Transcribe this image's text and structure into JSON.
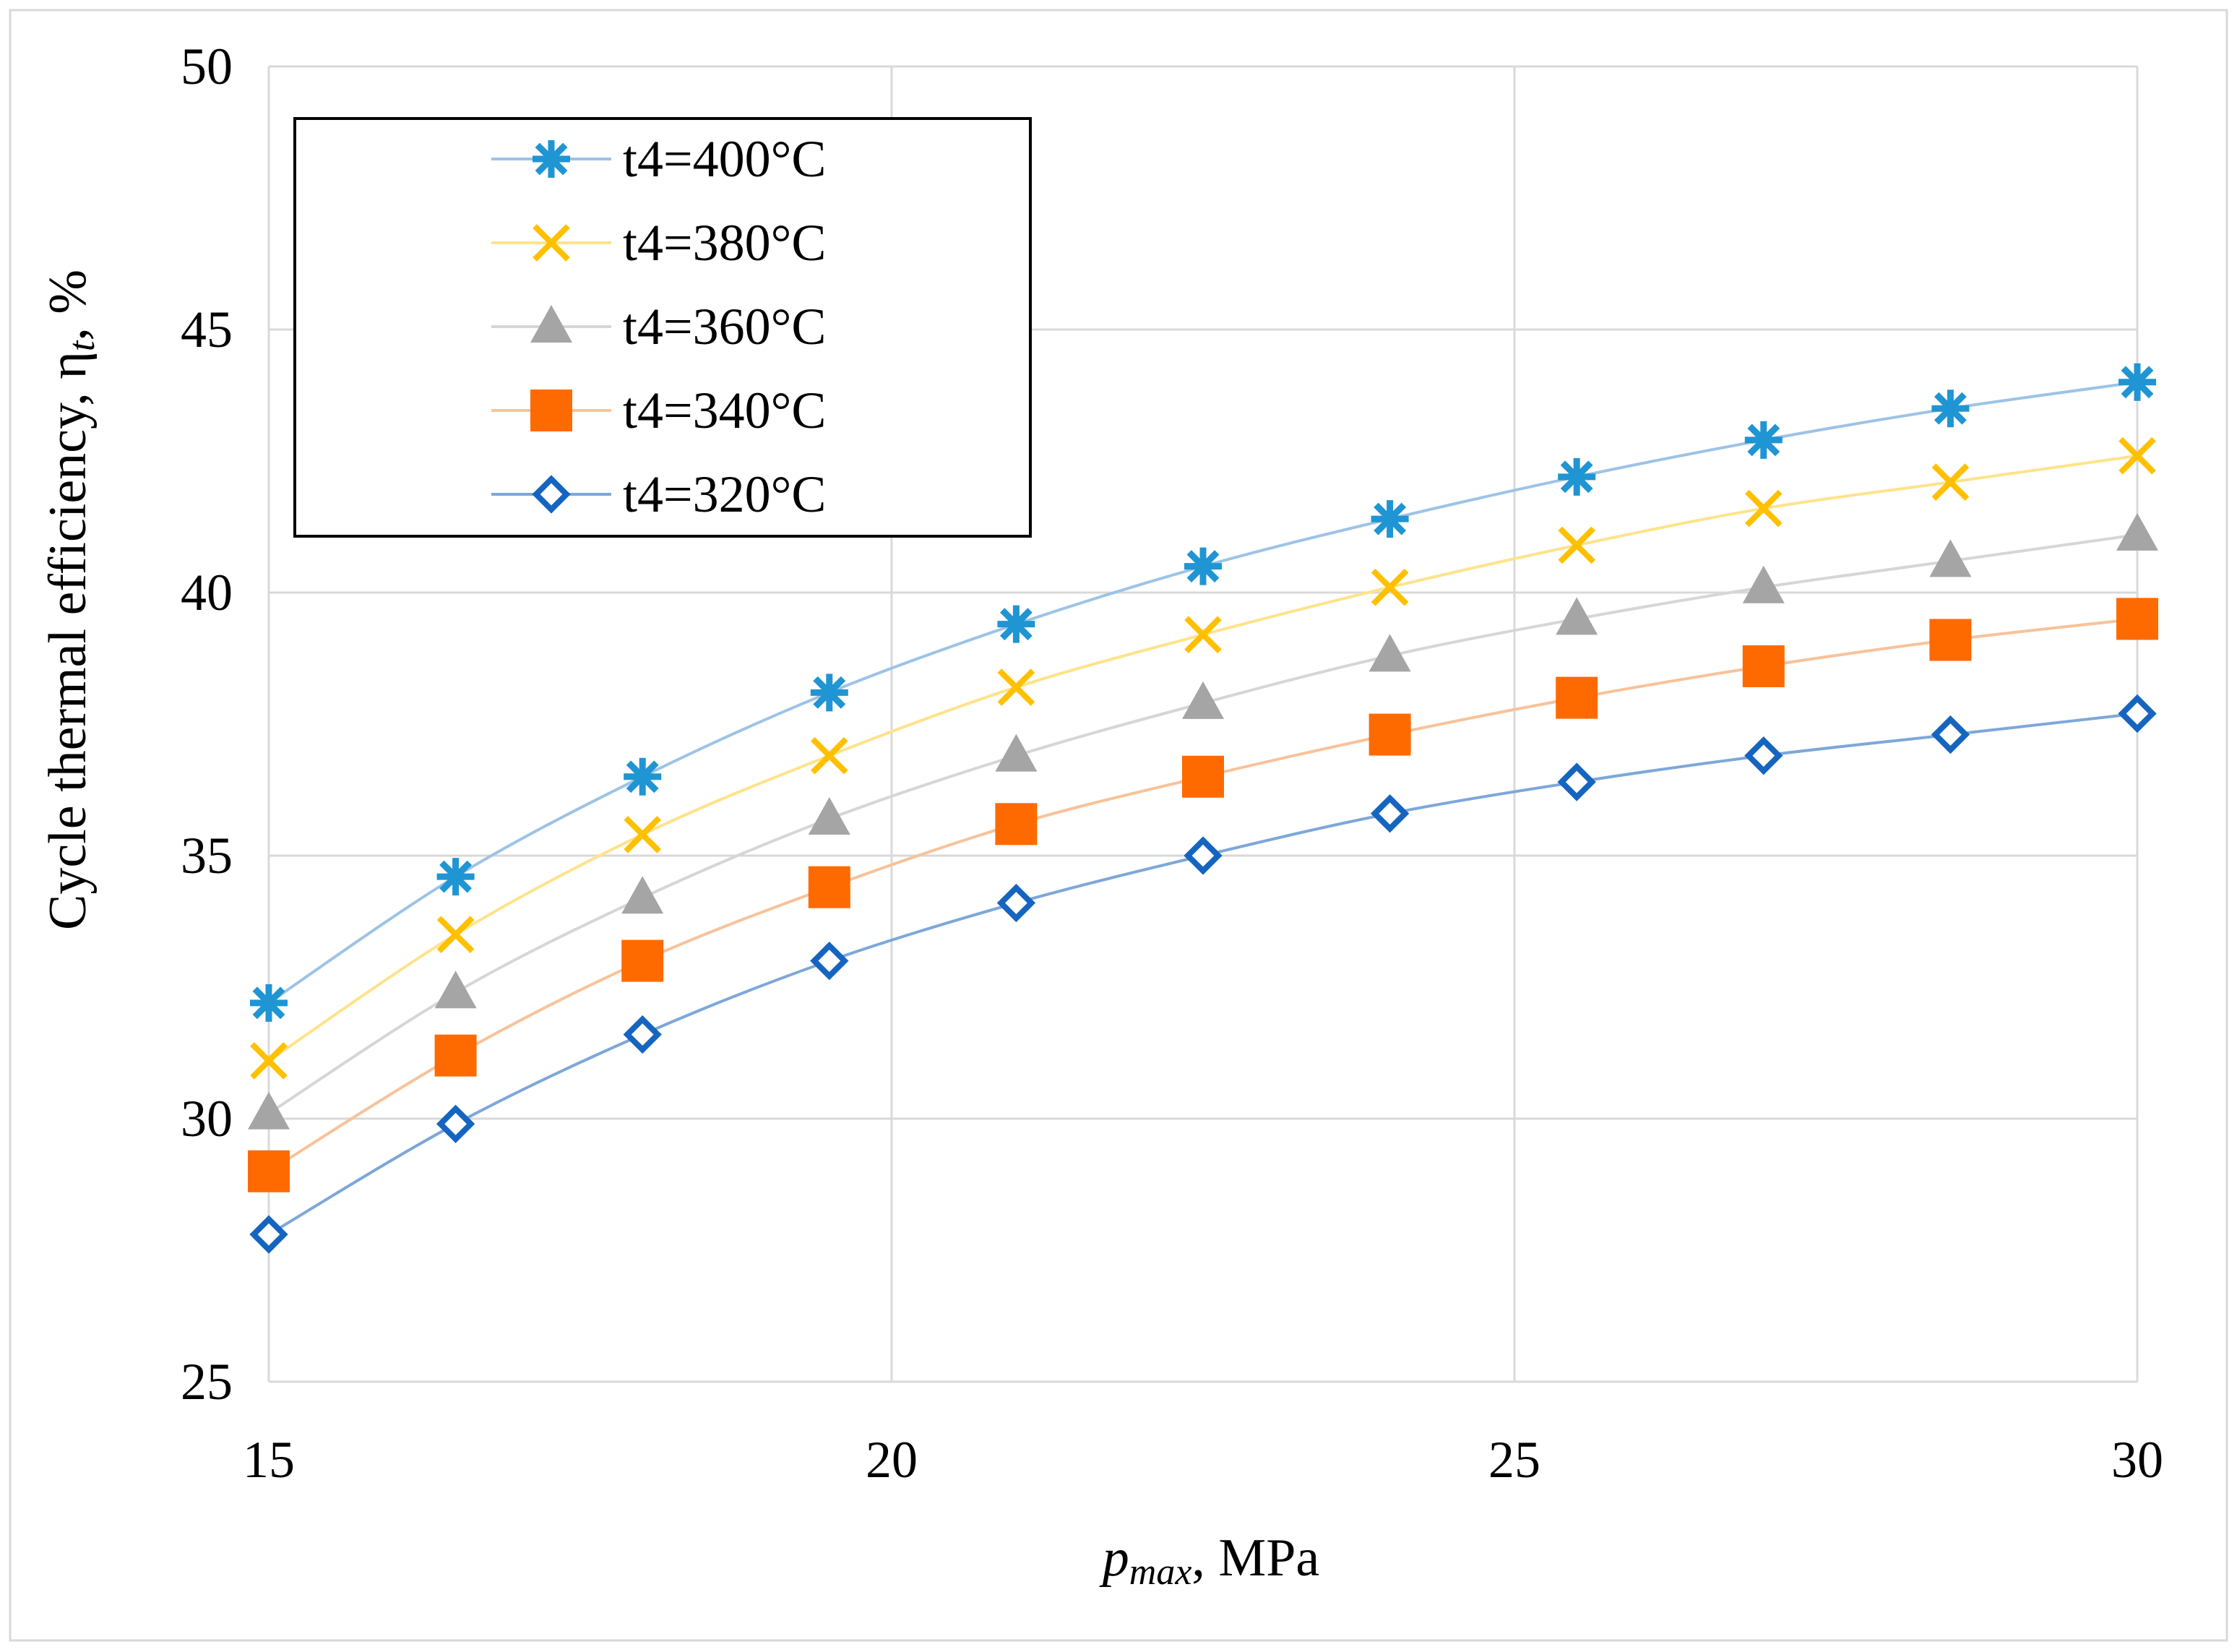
{
  "chart_data": {
    "type": "line",
    "x": [
      15,
      16.5,
      18,
      19.5,
      21,
      22.5,
      24,
      25.5,
      27,
      28.5,
      30
    ],
    "series": [
      {
        "name": "t4=400°C",
        "color": "#1f95d3",
        "line_color": "#9dc3e6",
        "marker": "asterisk",
        "values": [
          32.2,
          34.6,
          36.5,
          38.1,
          39.4,
          40.5,
          41.4,
          42.2,
          42.9,
          43.5,
          44.0
        ]
      },
      {
        "name": "t4=380°C",
        "color": "#ffc000",
        "line_color": "#ffe38a",
        "marker": "x",
        "values": [
          31.1,
          33.5,
          35.4,
          36.9,
          38.2,
          39.2,
          40.1,
          40.9,
          41.6,
          42.1,
          42.6
        ]
      },
      {
        "name": "t4=360°C",
        "color": "#a5a5a5",
        "line_color": "#d6d6d6",
        "marker": "triangle",
        "values": [
          30.1,
          32.4,
          34.2,
          35.7,
          36.9,
          37.9,
          38.8,
          39.5,
          40.1,
          40.6,
          41.1
        ]
      },
      {
        "name": "t4=340°C",
        "color": "#ff6a00",
        "line_color": "#f8c29a",
        "marker": "square",
        "values": [
          29.0,
          31.2,
          33.0,
          34.4,
          35.6,
          36.5,
          37.3,
          38.0,
          38.6,
          39.1,
          39.5
        ]
      },
      {
        "name": "t4=320°C",
        "color": "#1565c0",
        "line_color": "#7da7d9",
        "marker": "diamond",
        "values": [
          27.8,
          29.9,
          31.6,
          33.0,
          34.1,
          35.0,
          35.8,
          36.4,
          36.9,
          37.3,
          37.7
        ]
      }
    ],
    "x_ticks": [
      15,
      20,
      25,
      30
    ],
    "y_ticks": [
      25,
      30,
      35,
      40,
      45,
      50
    ],
    "xlim": [
      15,
      30
    ],
    "ylim": [
      25,
      50
    ],
    "xlabel_main": "p",
    "xlabel_sub": "max",
    "xlabel_unit": ", MPa",
    "ylabel_main": "Cycle thermal efficiency, η",
    "ylabel_sub": "t",
    "ylabel_unit": ", %",
    "grid": true,
    "legend_position": "top-left"
  }
}
